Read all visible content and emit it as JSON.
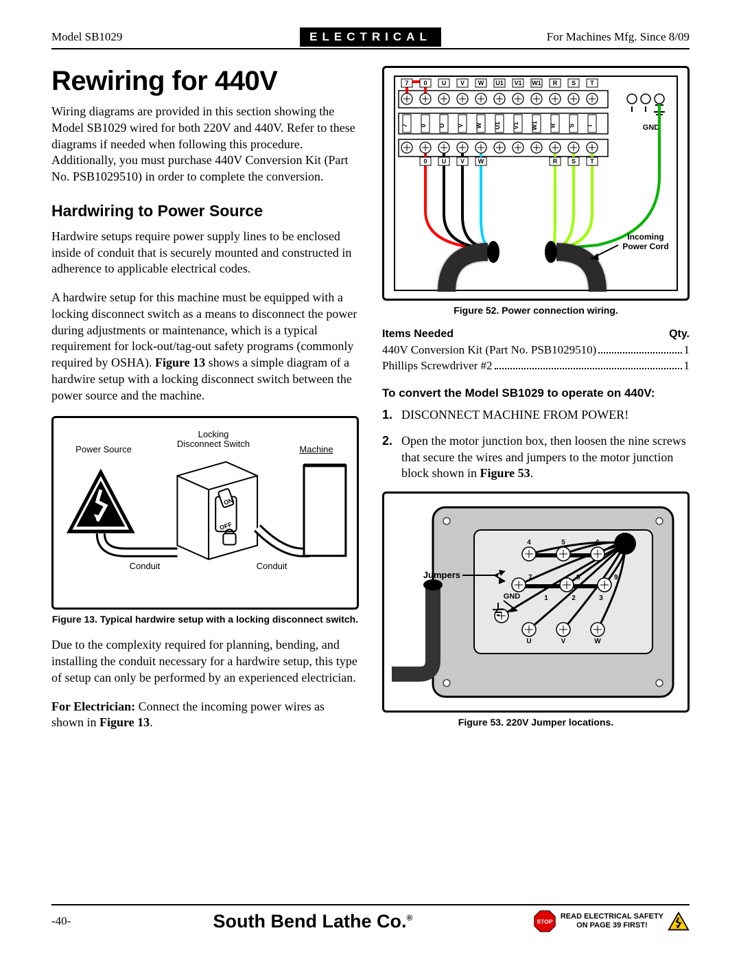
{
  "header": {
    "left": "Model SB1029",
    "center": "ELECTRICAL",
    "right": "For Machines Mfg. Since 8/09"
  },
  "title": "Rewiring for 440V",
  "intro": "Wiring diagrams are provided in this section showing the Model SB1029 wired for both 220V and 440V. Refer to these diagrams if needed when following this procedure. Additionally, you must purchase 440V Conversion Kit (Part No. PSB1029510) in order to complete the conversion.",
  "h2": "Hardwiring to Power Source",
  "p_hard1": "Hardwire setups require power supply lines to be enclosed inside of conduit that is securely mounted and constructed in adherence to applicable electrical codes.",
  "p_hard2_a": "A hardwire setup for this machine must be equipped with a locking disconnect switch as a means to disconnect the power during adjustments or maintenance, which is a typical requirement for lock-out/tag-out safety programs (commonly required by OSHA). ",
  "p_hard2_b": "Figure 13",
  "p_hard2_c": " shows a simple diagram of a hardwire setup with a locking disconnect switch between the power source and the machine.",
  "fig13": {
    "caption": "Figure 13. Typical hardwire setup with a locking disconnect switch.",
    "labels": {
      "power_source": "Power Source",
      "locking": "Locking",
      "disconnect": "Disconnect Switch",
      "machine": "Machine",
      "conduit": "Conduit",
      "on": "ON",
      "off": "OFF"
    }
  },
  "p_complex": "Due to the complexity required for planning, bending, and installing the conduit necessary for a hardwire setup, this type of setup can only be performed by an experienced electrician.",
  "p_elec_a": "For Electrician:",
  "p_elec_b": " Connect the incoming power wires as shown in ",
  "p_elec_c": "Figure 13",
  "fig52": {
    "caption": "Figure 52. Power connection wiring.",
    "top_labels": [
      "7",
      "0",
      "U",
      "V",
      "W",
      "U1",
      "V1",
      "W1",
      "R",
      "S",
      "T"
    ],
    "mid_labels": [
      "7",
      "0",
      "U",
      "V",
      "W",
      "U1",
      "V1",
      "W1",
      "R",
      "S",
      "T"
    ],
    "bot_labels": [
      "0",
      "U",
      "V",
      "W",
      "R",
      "S",
      "T"
    ],
    "gnd": "GND",
    "incoming": "Incoming",
    "power_cord": "Power Cord",
    "wire_colors": {
      "red": "#ff0000",
      "black": "#000000",
      "cyan": "#00d4ff",
      "lime": "#9dff00",
      "green": "#00b400",
      "cord": "#333333"
    }
  },
  "items": {
    "head_left": "Items Needed",
    "head_right": "Qty.",
    "rows": [
      {
        "label": "440V Conversion Kit (Part No. PSB1029510)",
        "qty": "1"
      },
      {
        "label": "Phillips Screwdriver #2",
        "qty": "1"
      }
    ]
  },
  "h3": "To convert the Model SB1029 to operate on 440V:",
  "steps": [
    {
      "num": "1.",
      "text": "DISCONNECT MACHINE FROM POWER!"
    },
    {
      "num": "2.",
      "text_a": "Open the motor junction box, then loosen the nine screws that secure the wires and jumpers to the motor junction block shown in ",
      "text_b": "Figure 53",
      "text_c": "."
    }
  ],
  "fig53": {
    "caption": "Figure 53. 220V Jumper locations.",
    "jumpers": "Jumpers",
    "gnd": "GND",
    "uvw": [
      "U",
      "V",
      "W"
    ],
    "nums": [
      "1",
      "2",
      "3",
      "4",
      "5",
      "6",
      "7",
      "8",
      "9"
    ],
    "box_fill": "#c8c8c8",
    "inner_fill": "#e8e8e8"
  },
  "footer": {
    "page": "-40-",
    "brand": "South Bend Lathe Co.",
    "stop": "STOP",
    "safety1": "READ ELECTRICAL SAFETY",
    "safety2": "ON PAGE 39 FIRST!"
  }
}
